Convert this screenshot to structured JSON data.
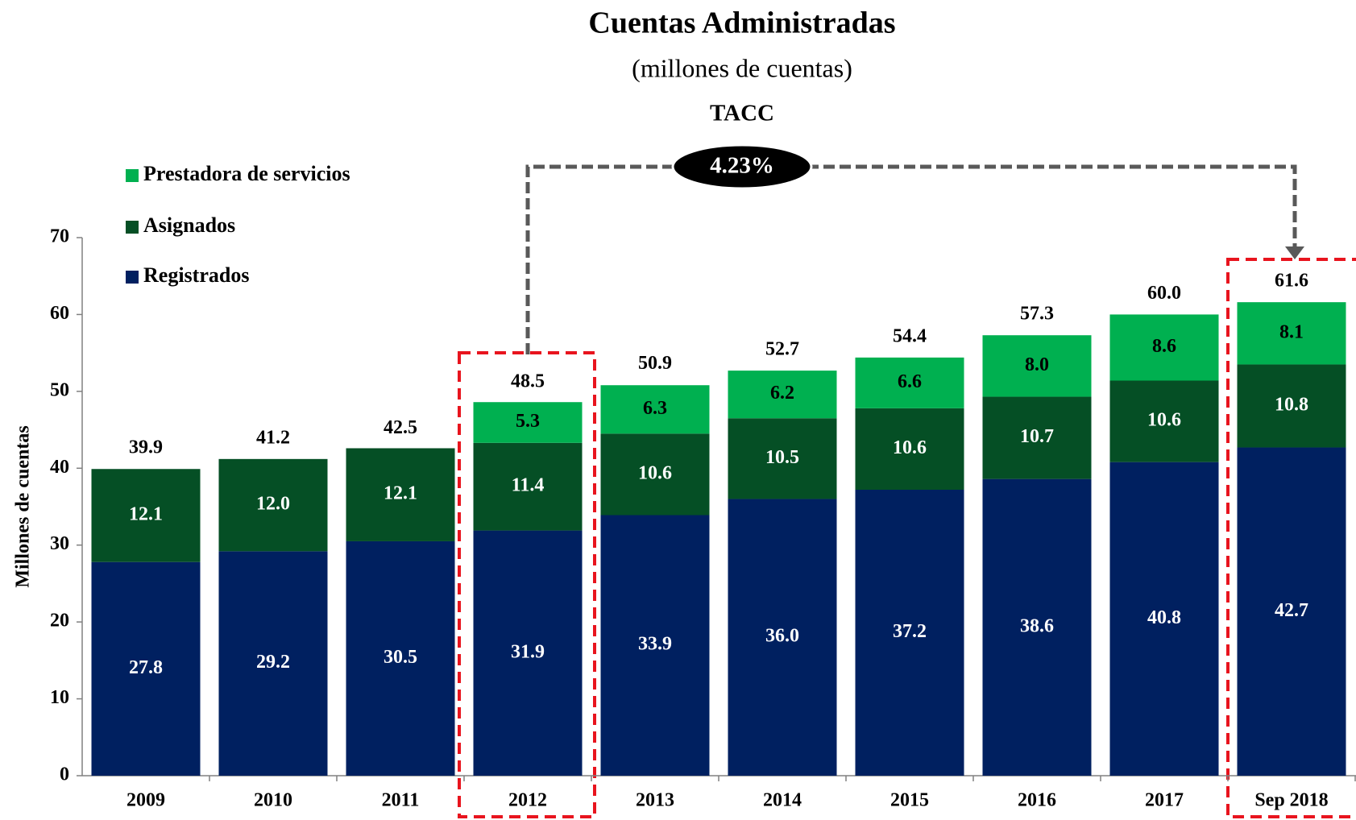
{
  "chart_data": {
    "type": "stacked_bar",
    "title": "Cuentas Administradas",
    "subtitle": "(millones de cuentas)",
    "y_label": "Millones de cuentas",
    "annotation_title": "TACC",
    "annotation_value": "4.23%",
    "categories": [
      "2009",
      "2010",
      "2011",
      "2012",
      "2013",
      "2014",
      "2015",
      "2016",
      "2017",
      "Sep 2018"
    ],
    "series": [
      {
        "name": "Registrados",
        "color": "#002060",
        "values": [
          27.8,
          29.2,
          30.5,
          31.9,
          33.9,
          36.0,
          37.2,
          38.6,
          40.8,
          42.7
        ],
        "value_labels": [
          "27.8",
          "29.2",
          "30.5",
          "31.9",
          "33.9",
          "36.0",
          "37.2",
          "38.6",
          "40.8",
          "42.7"
        ]
      },
      {
        "name": "Asignados",
        "color": "#054f25",
        "values": [
          12.1,
          12.0,
          12.1,
          11.4,
          10.6,
          10.5,
          10.6,
          10.7,
          10.6,
          10.8
        ],
        "value_labels": [
          "12.1",
          "12.0",
          "12.1",
          "11.4",
          "10.6",
          "10.5",
          "10.6",
          "10.7",
          "10.6",
          "10.8"
        ]
      },
      {
        "name": "Prestadora de servicios",
        "color": "#00b050",
        "values": [
          null,
          null,
          null,
          5.3,
          6.3,
          6.2,
          6.6,
          8.0,
          8.6,
          8.1
        ],
        "value_labels": [
          null,
          null,
          null,
          "5.3",
          "6.3",
          "6.2",
          "6.6",
          "8.0",
          "8.6",
          "8.1"
        ]
      }
    ],
    "totals": [
      39.9,
      41.2,
      42.5,
      48.5,
      50.9,
      52.7,
      54.4,
      57.3,
      60.0,
      61.6
    ],
    "total_labels": [
      "39.9",
      "41.2",
      "42.5",
      "48.5",
      "50.9",
      "52.7",
      "54.4",
      "57.3",
      "60.0",
      "61.6"
    ],
    "ylim": [
      0,
      70
    ],
    "yticks": [
      0,
      10,
      20,
      30,
      40,
      50,
      60,
      70
    ]
  }
}
